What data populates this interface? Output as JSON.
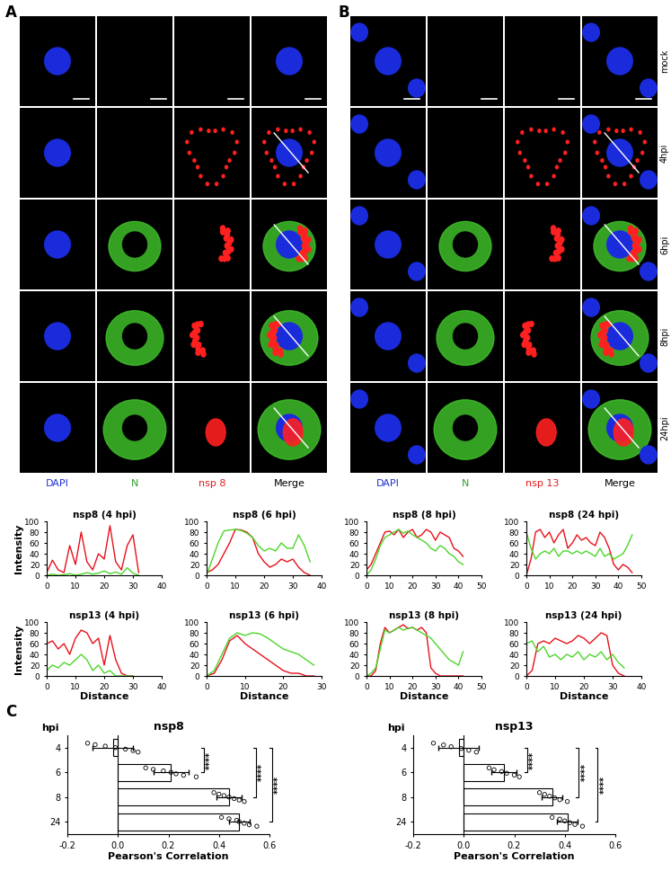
{
  "figure": {
    "panels": [
      "A",
      "B",
      "C"
    ],
    "row_labels": [
      "mock",
      "4hpi",
      "6hpi",
      "8hpi",
      "24hpi"
    ],
    "microscopy": [
      {
        "panel": "A",
        "columns": [
          {
            "label": "DAPI",
            "color": "#2030d0"
          },
          {
            "label": "N",
            "color": "#2ca02c"
          },
          {
            "label": "nsp 8",
            "color": "#e41a1c"
          },
          {
            "label": "Merge",
            "color": "#000000"
          }
        ]
      },
      {
        "panel": "B",
        "columns": [
          {
            "label": "DAPI",
            "color": "#2030d0"
          },
          {
            "label": "N",
            "color": "#2ca02c"
          },
          {
            "label": "nsp 13",
            "color": "#e41a1c"
          },
          {
            "label": "Merge",
            "color": "#000000"
          }
        ]
      }
    ]
  },
  "chart_data": [
    {
      "type": "line",
      "title": "nsp8 (4 hpi)",
      "y_label": "Intensity",
      "xlim": [
        0,
        40
      ],
      "xticks": [
        0,
        10,
        20,
        30,
        40
      ],
      "ylim": [
        0,
        100
      ],
      "yticks": [
        0,
        20,
        40,
        60,
        80,
        100
      ],
      "x": [
        0,
        2,
        4,
        6,
        8,
        10,
        12,
        14,
        16,
        18,
        20,
        22,
        24,
        26,
        28,
        30,
        32
      ],
      "series": [
        {
          "color": "#e8101a",
          "values": [
            5,
            28,
            10,
            5,
            55,
            20,
            80,
            25,
            10,
            40,
            30,
            92,
            25,
            10,
            55,
            75,
            5
          ]
        },
        {
          "color": "#4cd62a",
          "values": [
            0,
            2,
            0,
            1,
            3,
            0,
            2,
            5,
            2,
            4,
            8,
            3,
            6,
            2,
            14,
            4,
            0
          ]
        }
      ]
    },
    {
      "type": "line",
      "title": "nsp8 (6 hpi)",
      "xlim": [
        0,
        40
      ],
      "xticks": [
        0,
        10,
        20,
        30,
        40
      ],
      "ylim": [
        0,
        100
      ],
      "yticks": [
        0,
        20,
        40,
        60,
        80,
        100
      ],
      "x": [
        0,
        2,
        4,
        6,
        8,
        10,
        12,
        14,
        16,
        18,
        20,
        22,
        24,
        26,
        28,
        30,
        32,
        34,
        36
      ],
      "series": [
        {
          "color": "#e8101a",
          "values": [
            5,
            10,
            20,
            40,
            60,
            85,
            84,
            80,
            70,
            40,
            25,
            15,
            20,
            30,
            25,
            30,
            15,
            5,
            0
          ]
        },
        {
          "color": "#4cd62a",
          "values": [
            0,
            30,
            60,
            82,
            84,
            85,
            83,
            78,
            70,
            55,
            45,
            50,
            45,
            60,
            50,
            50,
            75,
            55,
            25
          ]
        }
      ]
    },
    {
      "type": "line",
      "title": "nsp8 (8 hpi)",
      "xlim": [
        0,
        50
      ],
      "xticks": [
        0,
        10,
        20,
        30,
        40,
        50
      ],
      "ylim": [
        0,
        100
      ],
      "yticks": [
        0,
        20,
        40,
        60,
        80,
        100
      ],
      "x": [
        0,
        2,
        4,
        6,
        8,
        10,
        12,
        14,
        16,
        18,
        20,
        22,
        24,
        26,
        28,
        30,
        32,
        34,
        36,
        38,
        40,
        42
      ],
      "series": [
        {
          "color": "#e8101a",
          "values": [
            10,
            20,
            40,
            60,
            80,
            82,
            75,
            85,
            70,
            80,
            85,
            70,
            75,
            85,
            80,
            65,
            80,
            75,
            70,
            50,
            45,
            35
          ]
        },
        {
          "color": "#4cd62a",
          "values": [
            0,
            10,
            30,
            55,
            70,
            75,
            80,
            85,
            78,
            82,
            75,
            70,
            65,
            60,
            50,
            45,
            55,
            50,
            40,
            35,
            25,
            20
          ]
        }
      ]
    },
    {
      "type": "line",
      "title": "nsp8 (24 hpi)",
      "xlim": [
        0,
        50
      ],
      "xticks": [
        0,
        10,
        20,
        30,
        40,
        50
      ],
      "ylim": [
        0,
        100
      ],
      "yticks": [
        0,
        20,
        40,
        60,
        80,
        100
      ],
      "x": [
        0,
        2,
        4,
        6,
        8,
        10,
        12,
        14,
        16,
        18,
        20,
        22,
        24,
        26,
        28,
        30,
        32,
        34,
        36,
        38,
        40,
        42,
        44,
        46
      ],
      "series": [
        {
          "color": "#e8101a",
          "values": [
            0,
            30,
            80,
            85,
            70,
            80,
            60,
            75,
            85,
            50,
            60,
            75,
            65,
            70,
            60,
            55,
            80,
            70,
            50,
            20,
            10,
            20,
            15,
            5
          ]
        },
        {
          "color": "#4cd62a",
          "values": [
            80,
            50,
            30,
            40,
            45,
            40,
            50,
            35,
            45,
            45,
            40,
            45,
            40,
            45,
            40,
            35,
            50,
            35,
            40,
            30,
            35,
            40,
            55,
            75
          ]
        }
      ]
    },
    {
      "type": "line",
      "title": "nsp13 (4 hpi)",
      "x_label": "Distance",
      "y_label": "Intensity",
      "xlim": [
        0,
        40
      ],
      "xticks": [
        0,
        10,
        20,
        30,
        40
      ],
      "ylim": [
        0,
        100
      ],
      "yticks": [
        0,
        20,
        40,
        60,
        80,
        100
      ],
      "x": [
        0,
        2,
        4,
        6,
        8,
        10,
        12,
        14,
        16,
        18,
        20,
        22,
        24,
        26,
        28,
        30
      ],
      "series": [
        {
          "color": "#e8101a",
          "values": [
            60,
            65,
            50,
            60,
            40,
            70,
            85,
            80,
            60,
            70,
            20,
            75,
            30,
            5,
            0,
            0
          ]
        },
        {
          "color": "#4cd62a",
          "values": [
            10,
            20,
            15,
            25,
            20,
            30,
            40,
            30,
            10,
            20,
            5,
            10,
            0,
            0,
            0,
            0
          ]
        }
      ]
    },
    {
      "type": "line",
      "title": "nsp13 (6 hpi)",
      "x_label": "Distance",
      "xlim": [
        0,
        30
      ],
      "xticks": [
        0,
        10,
        20,
        30
      ],
      "ylim": [
        0,
        100
      ],
      "yticks": [
        0,
        20,
        40,
        60,
        80,
        100
      ],
      "x": [
        0,
        2,
        4,
        6,
        8,
        10,
        12,
        14,
        16,
        18,
        20,
        22,
        24,
        26,
        28
      ],
      "series": [
        {
          "color": "#e8101a",
          "values": [
            0,
            5,
            30,
            65,
            75,
            60,
            50,
            40,
            30,
            20,
            10,
            5,
            5,
            0,
            0
          ]
        },
        {
          "color": "#4cd62a",
          "values": [
            0,
            10,
            40,
            70,
            80,
            75,
            80,
            78,
            70,
            60,
            50,
            45,
            40,
            30,
            20
          ]
        }
      ]
    },
    {
      "type": "line",
      "title": "nsp13 (8 hpi)",
      "x_label": "Distance",
      "xlim": [
        0,
        50
      ],
      "xticks": [
        0,
        10,
        20,
        30,
        40,
        50
      ],
      "ylim": [
        0,
        100
      ],
      "yticks": [
        0,
        20,
        40,
        60,
        80,
        100
      ],
      "x": [
        0,
        2,
        4,
        6,
        8,
        10,
        12,
        14,
        16,
        18,
        20,
        22,
        24,
        26,
        28,
        30,
        32,
        34,
        36,
        38,
        40,
        42
      ],
      "series": [
        {
          "color": "#e8101a",
          "values": [
            0,
            0,
            10,
            60,
            90,
            80,
            85,
            90,
            95,
            88,
            90,
            85,
            90,
            80,
            15,
            5,
            0,
            0,
            0,
            0,
            0,
            0
          ]
        },
        {
          "color": "#4cd62a",
          "values": [
            0,
            5,
            15,
            50,
            85,
            80,
            85,
            90,
            85,
            88,
            90,
            85,
            80,
            75,
            70,
            60,
            50,
            40,
            30,
            25,
            20,
            45
          ]
        }
      ]
    },
    {
      "type": "line",
      "title": "nsp13 (24 hpi)",
      "x_label": "Distance",
      "xlim": [
        0,
        40
      ],
      "xticks": [
        0,
        10,
        20,
        30,
        40
      ],
      "ylim": [
        0,
        100
      ],
      "yticks": [
        0,
        20,
        40,
        60,
        80,
        100
      ],
      "x": [
        0,
        2,
        4,
        6,
        8,
        10,
        12,
        14,
        16,
        18,
        20,
        22,
        24,
        26,
        28,
        30,
        32,
        34
      ],
      "series": [
        {
          "color": "#e8101a",
          "values": [
            0,
            10,
            60,
            65,
            60,
            70,
            65,
            60,
            65,
            75,
            70,
            60,
            70,
            80,
            75,
            20,
            5,
            0
          ]
        },
        {
          "color": "#4cd62a",
          "values": [
            60,
            65,
            45,
            55,
            35,
            40,
            30,
            40,
            35,
            45,
            30,
            40,
            35,
            45,
            30,
            40,
            25,
            15
          ]
        }
      ]
    },
    {
      "type": "bar",
      "orientation": "horizontal",
      "title": "nsp8",
      "x_label": "Pearson's Correlation",
      "y_label": "hpi",
      "categories": [
        "4",
        "6",
        "8",
        "24"
      ],
      "values": [
        -0.02,
        0.21,
        0.44,
        0.48
      ],
      "errors": [
        0.08,
        0.07,
        0.05,
        0.04
      ],
      "points": [
        [
          -0.12,
          -0.09,
          -0.05,
          -0.01,
          0.03,
          0.06,
          0.08
        ],
        [
          0.11,
          0.14,
          0.18,
          0.21,
          0.23,
          0.26,
          0.31
        ],
        [
          0.38,
          0.4,
          0.42,
          0.44,
          0.46,
          0.48,
          0.5
        ],
        [
          0.41,
          0.44,
          0.47,
          0.48,
          0.5,
          0.52,
          0.55
        ]
      ],
      "significance": [
        {
          "from": "4",
          "to": "6",
          "label": "****"
        },
        {
          "from": "4",
          "to": "8",
          "label": "****"
        },
        {
          "from": "4",
          "to": "24",
          "label": "****"
        }
      ],
      "xlim": [
        -0.2,
        0.6
      ],
      "xticks": [
        -0.2,
        0.0,
        0.2,
        0.4,
        0.6
      ],
      "color": "#ffffff",
      "marker": "o"
    },
    {
      "type": "bar",
      "orientation": "horizontal",
      "title": "nsp13",
      "x_label": "Pearson's Correlation",
      "y_label": "hpi",
      "categories": [
        "4",
        "6",
        "8",
        "24"
      ],
      "values": [
        -0.02,
        0.16,
        0.35,
        0.41
      ],
      "errors": [
        0.08,
        0.05,
        0.04,
        0.04
      ],
      "points": [
        [
          -0.12,
          -0.08,
          -0.05,
          -0.01,
          0.02,
          0.05
        ],
        [
          0.1,
          0.12,
          0.15,
          0.17,
          0.2,
          0.22
        ],
        [
          0.3,
          0.32,
          0.34,
          0.36,
          0.38,
          0.41
        ],
        [
          0.35,
          0.38,
          0.4,
          0.42,
          0.44,
          0.47
        ]
      ],
      "significance": [
        {
          "from": "4",
          "to": "6",
          "label": "****"
        },
        {
          "from": "4",
          "to": "8",
          "label": "****"
        },
        {
          "from": "4",
          "to": "24",
          "label": "****"
        }
      ],
      "xlim": [
        -0.2,
        0.6
      ],
      "xticks": [
        -0.2,
        0.0,
        0.2,
        0.4,
        0.6
      ],
      "color": "#ffffff",
      "marker": "o"
    }
  ]
}
